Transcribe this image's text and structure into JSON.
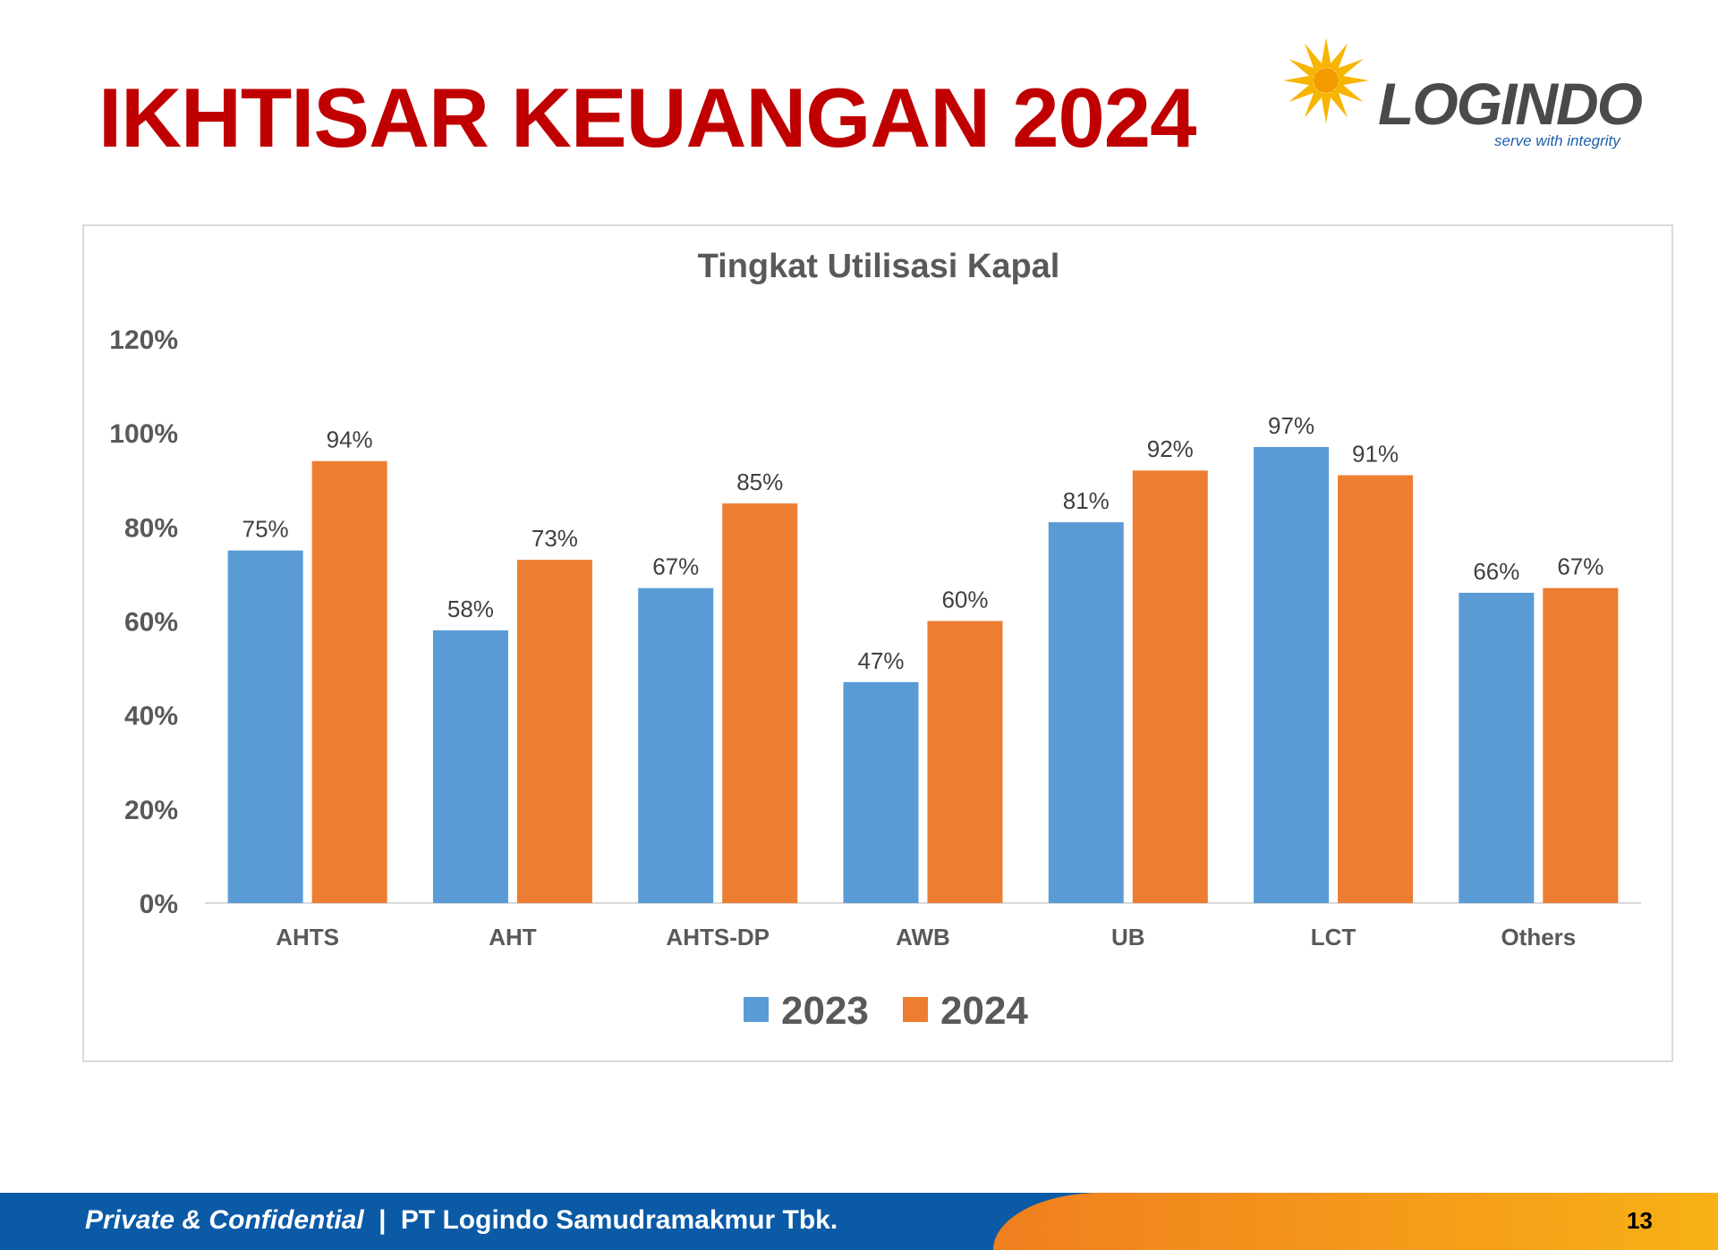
{
  "page": {
    "title": "IKHTISAR KEUANGAN 2024",
    "logo": {
      "name": "LOGINDO",
      "tagline": "serve with integrity"
    },
    "footer": {
      "confidential": "Private & Confidential",
      "separator": "|",
      "company": "PT Logindo Samudramakmur Tbk.",
      "page_number": "13"
    }
  },
  "chart_data": {
    "type": "bar",
    "title": "Tingkat Utilisasi Kapal",
    "xlabel": "",
    "ylabel": "",
    "categories": [
      "AHTS",
      "AHT",
      "AHTS-DP",
      "AWB",
      "UB",
      "LCT",
      "Others"
    ],
    "series": [
      {
        "name": "2023",
        "color": "#5b9bd5",
        "values": [
          75,
          58,
          67,
          47,
          81,
          97,
          66
        ]
      },
      {
        "name": "2024",
        "color": "#ed7d31",
        "values": [
          94,
          73,
          85,
          60,
          92,
          91,
          67
        ]
      }
    ],
    "ylim": [
      0,
      120
    ],
    "yticks": [
      0,
      20,
      40,
      60,
      80,
      100,
      120
    ],
    "ytick_labels": [
      "0%",
      "20%",
      "40%",
      "60%",
      "80%",
      "100%",
      "120%"
    ],
    "value_suffix": "%",
    "grid": false,
    "legend": "bottom-center"
  }
}
